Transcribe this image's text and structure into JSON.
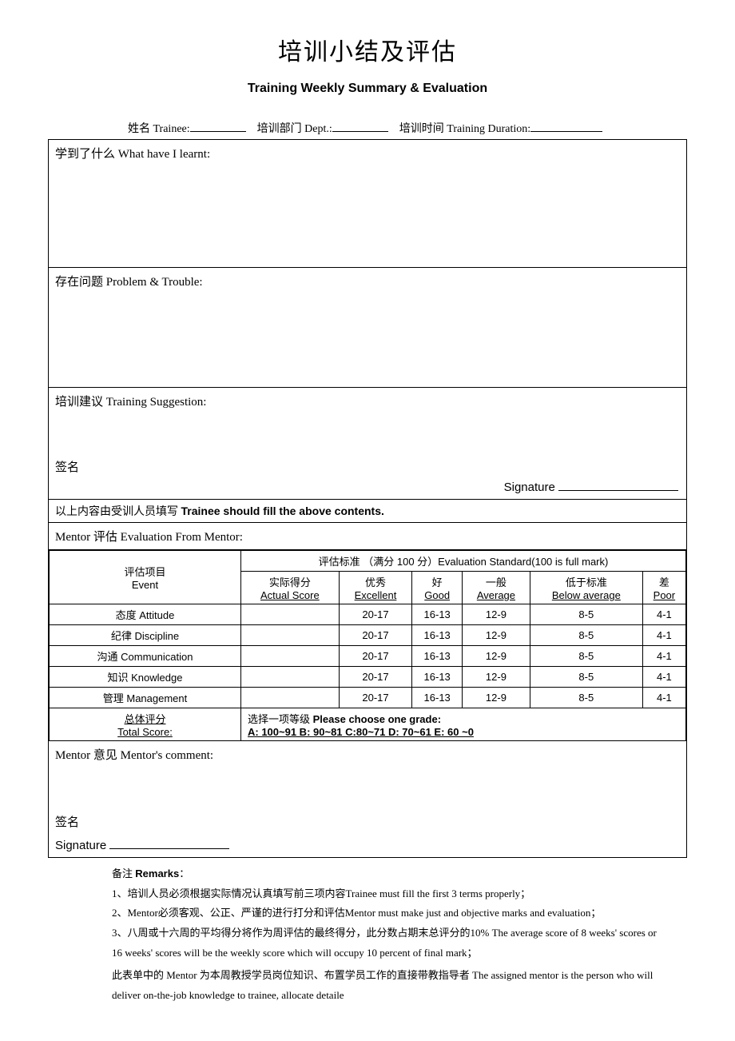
{
  "title_cn": "培训小结及评估",
  "title_en": "Training Weekly Summary & Evaluation",
  "info": {
    "trainee_label": "姓名 Trainee:",
    "dept_label": "培训部门 Dept.:",
    "duration_label": "培训时间 Training Duration:"
  },
  "sections": {
    "learnt": "学到了什么 What have I learnt:",
    "problem": "存在问题 Problem & Trouble:",
    "suggest": "培训建议 Training Suggestion:",
    "sign_cn": "签名",
    "signature": "Signature",
    "trainee_note_cn": "以上内容由受训人员填写",
    "trainee_note_en": "Trainee should fill the above contents.",
    "mentor_eval": "Mentor 评估 Evaluation From Mentor:"
  },
  "eval_table": {
    "event_label_cn": "评估项目",
    "event_label_en": "Event",
    "standard_header": "评估标准 （满分 100 分）Evaluation Standard(100 is full mark)",
    "cols": [
      {
        "cn": "实际得分",
        "en": "Actual Score"
      },
      {
        "cn": "优秀",
        "en": "Excellent"
      },
      {
        "cn": "好",
        "en": "Good"
      },
      {
        "cn": "一般",
        "en": "Average"
      },
      {
        "cn": "低于标准",
        "en": "Below average"
      },
      {
        "cn": "差",
        "en": "Poor"
      }
    ],
    "rows": [
      {
        "label": "态度 Attitude",
        "scores": [
          "",
          "20-17",
          "16-13",
          "12-9",
          "8-5",
          "4-1"
        ]
      },
      {
        "label": "纪律 Discipline",
        "scores": [
          "",
          "20-17",
          "16-13",
          "12-9",
          "8-5",
          "4-1"
        ]
      },
      {
        "label": "沟通 Communication",
        "scores": [
          "",
          "20-17",
          "16-13",
          "12-9",
          "8-5",
          "4-1"
        ]
      },
      {
        "label": "知识 Knowledge",
        "scores": [
          "",
          "20-17",
          "16-13",
          "12-9",
          "8-5",
          "4-1"
        ]
      },
      {
        "label": "管理 Management",
        "scores": [
          "",
          "20-17",
          "16-13",
          "12-9",
          "8-5",
          "4-1"
        ]
      }
    ],
    "total_cn": "总体评分",
    "total_en": "Total Score:",
    "choose_cn": "选择一项等级",
    "choose_en": "Please choose one grade:",
    "grades": "A: 100~91   B: 90~81   C:80~71   D: 70~61   E: 60 ~0"
  },
  "mentor_comment": "Mentor  意见 Mentor's comment:",
  "remarks": {
    "header": "备注 Remarks：",
    "items": [
      "1、培训人员必须根据实际情况认真填写前三项内容Trainee must fill the first 3 terms properly；",
      "2、Mentor必须客观、公正、严谨的进行打分和评估Mentor must make just and objective marks and evaluation；",
      "3、八周或十六周的平均得分将作为周评估的最终得分，此分数占期末总评分的10% The average score of 8 weeks' scores or 16 weeks' scores will be the weekly score which will occupy 10 percent of final mark；"
    ],
    "footer": "此表单中的 Mentor 为本周教授学员岗位知识、布置学员工作的直接带教指导者 The assigned mentor is the person who will deliver on-the-job knowledge to trainee, allocate detaile"
  }
}
